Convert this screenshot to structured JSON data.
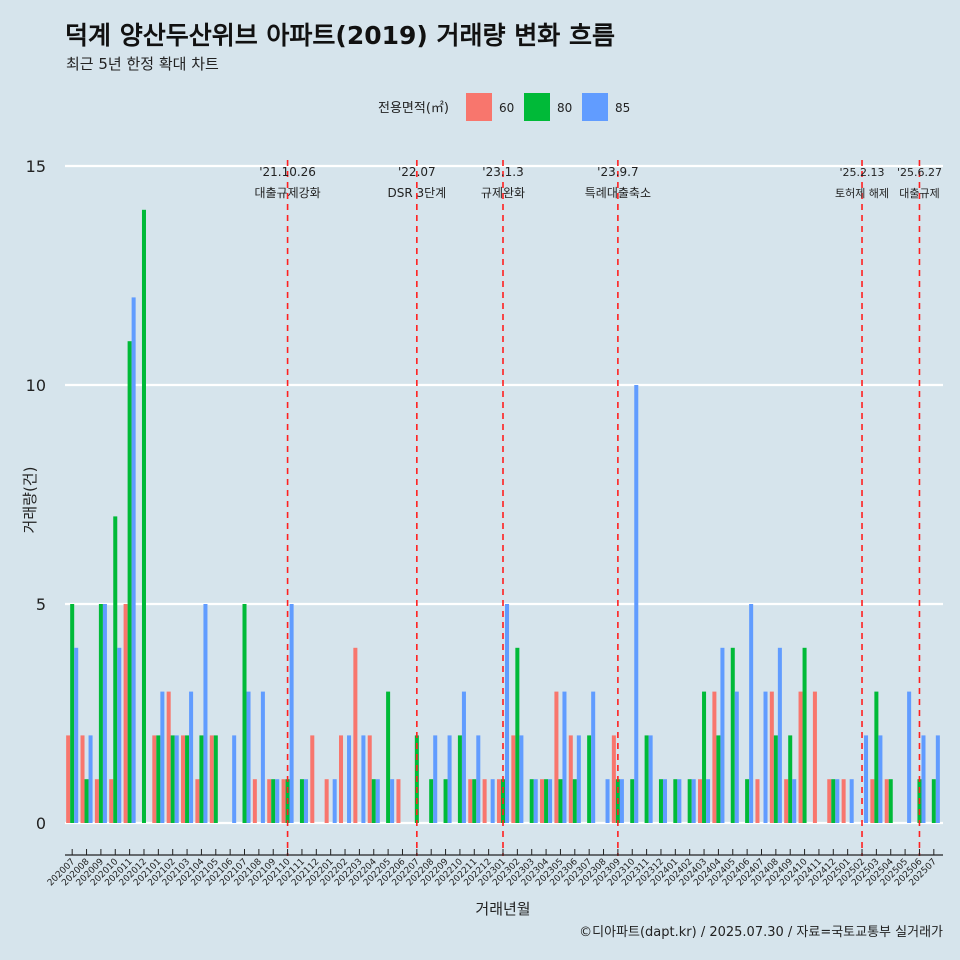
{
  "chart_data": {
    "type": "bar",
    "title": "덕계 양산두산위브 아파트(2019) 거래량 변화 흐름",
    "subtitle": "최근 5년 한정 확대 차트",
    "xlabel": "거래년월",
    "ylabel": "거래량(건)",
    "ylim": [
      0,
      15
    ],
    "yticks": [
      0,
      5,
      10,
      15
    ],
    "grid": true,
    "legend": {
      "title": "전용면적(㎡)",
      "position": "top"
    },
    "categories": [
      "202007",
      "202008",
      "202009",
      "202010",
      "202011",
      "202012",
      "202101",
      "202102",
      "202103",
      "202104",
      "202105",
      "202106",
      "202107",
      "202108",
      "202109",
      "202110",
      "202111",
      "202112",
      "202201",
      "202202",
      "202203",
      "202204",
      "202205",
      "202206",
      "202207",
      "202208",
      "202209",
      "202210",
      "202211",
      "202212",
      "202301",
      "202302",
      "202303",
      "202304",
      "202305",
      "202306",
      "202307",
      "202308",
      "202309",
      "202310",
      "202311",
      "202312",
      "202401",
      "202402",
      "202403",
      "202404",
      "202405",
      "202406",
      "202407",
      "202408",
      "202409",
      "202410",
      "202411",
      "202412",
      "202501",
      "202502",
      "202503",
      "202504",
      "202505",
      "202506",
      "202507"
    ],
    "series": [
      {
        "name": "60",
        "color": "#f8766d",
        "values": [
          2,
          2,
          1,
          1,
          5,
          0,
          2,
          3,
          2,
          1,
          2,
          0,
          0,
          1,
          1,
          1,
          0,
          2,
          1,
          2,
          4,
          2,
          0,
          1,
          0,
          0,
          0,
          0,
          1,
          1,
          1,
          2,
          0,
          1,
          3,
          2,
          0,
          0,
          2,
          0,
          0,
          0,
          0,
          0,
          1,
          3,
          0,
          0,
          1,
          3,
          1,
          3,
          3,
          1,
          1,
          0,
          1,
          1,
          0,
          0,
          0
        ]
      },
      {
        "name": "80",
        "color": "#00ba38",
        "values": [
          5,
          1,
          5,
          7,
          11,
          14,
          2,
          2,
          2,
          2,
          2,
          0,
          5,
          0,
          1,
          1,
          1,
          0,
          0,
          0,
          0,
          1,
          3,
          0,
          2,
          1,
          1,
          2,
          1,
          0,
          1,
          4,
          1,
          1,
          1,
          1,
          2,
          0,
          1,
          1,
          2,
          1,
          1,
          1,
          3,
          2,
          4,
          1,
          0,
          2,
          2,
          4,
          0,
          1,
          0,
          0,
          3,
          1,
          0,
          1,
          1
        ]
      },
      {
        "name": "85",
        "color": "#619cff",
        "values": [
          4,
          2,
          5,
          4,
          12,
          0,
          3,
          2,
          3,
          5,
          0,
          2,
          3,
          3,
          1,
          5,
          1,
          0,
          1,
          2,
          2,
          1,
          1,
          0,
          0,
          2,
          2,
          3,
          2,
          1,
          5,
          2,
          1,
          1,
          3,
          2,
          3,
          1,
          1,
          10,
          2,
          1,
          1,
          1,
          1,
          4,
          3,
          5,
          3,
          4,
          1,
          0,
          0,
          1,
          1,
          2,
          2,
          0,
          3,
          2,
          2
        ]
      }
    ],
    "events": [
      {
        "date": "'21.10.26",
        "label": "대출규제강화",
        "at": "202110"
      },
      {
        "date": "'22.07",
        "label": "DSR 3단계",
        "at": "202207"
      },
      {
        "date": "'23.1.3",
        "label": "규제완화",
        "at": "202301"
      },
      {
        "date": "'23.9.7",
        "label": "특례대출축소",
        "at": "202309"
      },
      {
        "date": "'25.2.13",
        "label": "토허제 해제",
        "at": "202502"
      },
      {
        "date": "'25.6.27",
        "label": "대출규제",
        "at": "202506"
      }
    ],
    "caption": "©디아파트(dapt.kr) / 2025.07.30 / 자료=국토교통부 실거래가"
  }
}
